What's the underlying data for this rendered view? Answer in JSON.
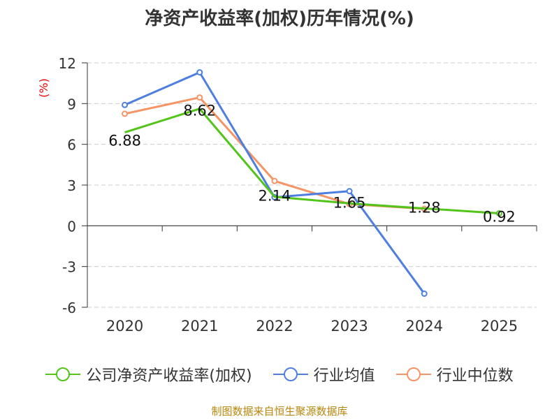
{
  "title": "净资产收益率(加权)历年情况(%)",
  "source": "制图数据来自恒生聚源数据库",
  "chart_data": {
    "type": "line",
    "title": "净资产收益率(加权)历年情况(%)",
    "ylabel": "(%)",
    "xlabel": "",
    "categories": [
      "2020",
      "2021",
      "2022",
      "2023",
      "2024",
      "2025"
    ],
    "ylim": [
      -6,
      12
    ],
    "yticks": [
      "-6",
      "-3",
      "0",
      "3",
      "6",
      "9",
      "12"
    ],
    "grid": true,
    "legend_position": "bottom",
    "series": [
      {
        "name": "公司净资产收益率(加权)",
        "color": "#52c41a",
        "values": [
          6.88,
          8.62,
          2.14,
          1.65,
          1.28,
          0.92
        ],
        "labels": [
          "6.88",
          "8.62",
          "2.14",
          "1.65",
          "1.28",
          "0.92"
        ]
      },
      {
        "name": "行业均值",
        "color": "#4e7fe0",
        "values": [
          8.9,
          11.3,
          2.1,
          2.55,
          -5.0,
          null
        ]
      },
      {
        "name": "行业中位数",
        "color": "#f59464",
        "values": [
          8.25,
          9.45,
          3.3,
          1.6,
          1.25,
          null
        ]
      }
    ]
  }
}
